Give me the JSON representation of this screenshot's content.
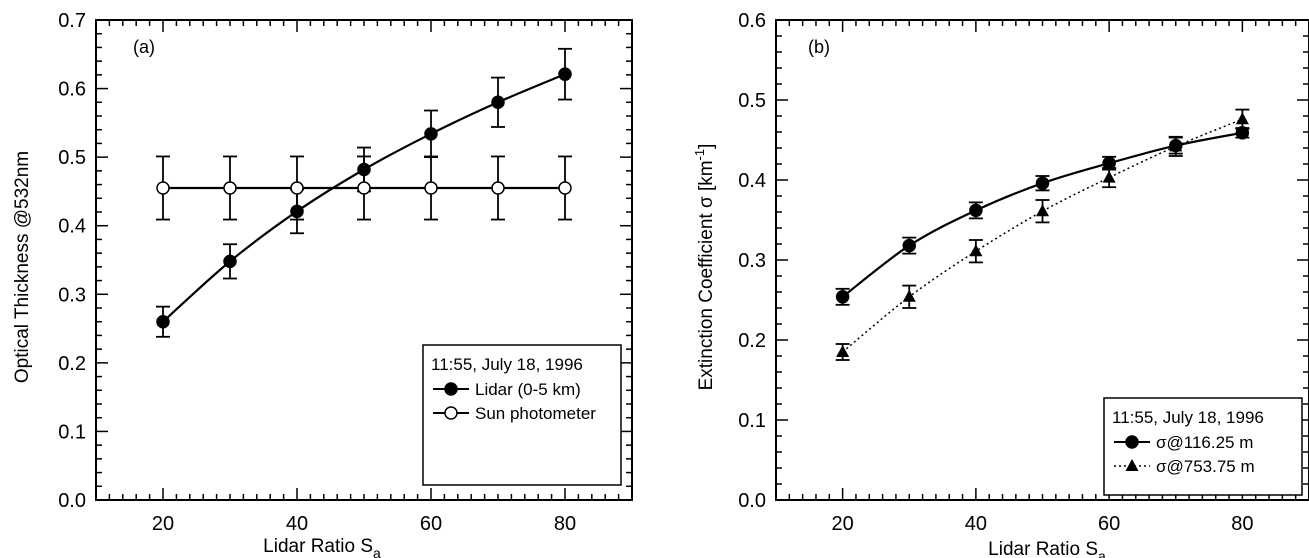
{
  "chart_data": [
    {
      "type": "line",
      "panel_label": "(a)",
      "xlabel": "Lidar Ratio S",
      "xlabel_sub": "a",
      "ylabel": "Optical Thickness @532nm",
      "xlim": [
        10,
        90
      ],
      "ylim": [
        0.0,
        0.7
      ],
      "x_ticks": [
        20,
        40,
        60,
        80
      ],
      "y_ticks": [
        0.0,
        0.1,
        0.2,
        0.3,
        0.4,
        0.5,
        0.6,
        0.7
      ],
      "x_tick_labels": [
        "20",
        "40",
        "60",
        "80"
      ],
      "y_tick_labels": [
        "0.0",
        "0.1",
        "0.2",
        "0.3",
        "0.4",
        "0.5",
        "0.6",
        "0.7"
      ],
      "legend_title": "11:55, July 18, 1996",
      "legend_position": "bottom-right",
      "series": [
        {
          "name": "Lidar (0-5 km)",
          "marker": "filled-circle",
          "line": "solid",
          "x": [
            20,
            30,
            40,
            50,
            60,
            70,
            80
          ],
          "y": [
            0.26,
            0.348,
            0.421,
            0.482,
            0.534,
            0.58,
            0.621
          ],
          "err": [
            0.022,
            0.025,
            0.032,
            0.032,
            0.034,
            0.036,
            0.037
          ]
        },
        {
          "name": "Sun photometer",
          "marker": "open-circle",
          "line": "solid",
          "x": [
            20,
            30,
            40,
            50,
            60,
            70,
            80
          ],
          "y": [
            0.455,
            0.455,
            0.455,
            0.455,
            0.455,
            0.455,
            0.455
          ],
          "err": [
            0.046,
            0.046,
            0.046,
            0.046,
            0.046,
            0.046,
            0.046
          ]
        }
      ]
    },
    {
      "type": "line",
      "panel_label": "(b)",
      "xlabel": "Lidar Ratio S",
      "xlabel_sub": "a",
      "ylabel": "Extinction Coefficient   σ [km",
      "ylabel_sup": "-1",
      "ylabel_end": "]",
      "xlim": [
        10,
        90
      ],
      "ylim": [
        0.0,
        0.6
      ],
      "x_ticks": [
        20,
        40,
        60,
        80
      ],
      "y_ticks": [
        0.0,
        0.1,
        0.2,
        0.3,
        0.4,
        0.5,
        0.6
      ],
      "x_tick_labels": [
        "20",
        "40",
        "60",
        "80"
      ],
      "y_tick_labels": [
        "0.0",
        "0.1",
        "0.2",
        "0.3",
        "0.4",
        "0.5",
        "0.6"
      ],
      "legend_title": "11:55, July 18, 1996",
      "legend_position": "bottom-right",
      "series": [
        {
          "name": "σ@116.25 m",
          "marker": "filled-circle",
          "line": "solid",
          "x": [
            20,
            30,
            40,
            50,
            60,
            70,
            80
          ],
          "y": [
            0.254,
            0.318,
            0.362,
            0.396,
            0.421,
            0.443,
            0.459
          ],
          "err": [
            0.01,
            0.01,
            0.01,
            0.009,
            0.008,
            0.01,
            0.006
          ]
        },
        {
          "name": "σ@753.75 m",
          "marker": "filled-triangle",
          "line": "dotted",
          "x": [
            20,
            30,
            40,
            50,
            60,
            70,
            80
          ],
          "y": [
            0.185,
            0.254,
            0.311,
            0.361,
            0.403,
            0.442,
            0.476
          ],
          "err": [
            0.01,
            0.014,
            0.014,
            0.014,
            0.012,
            0.012,
            0.012
          ]
        }
      ]
    }
  ]
}
